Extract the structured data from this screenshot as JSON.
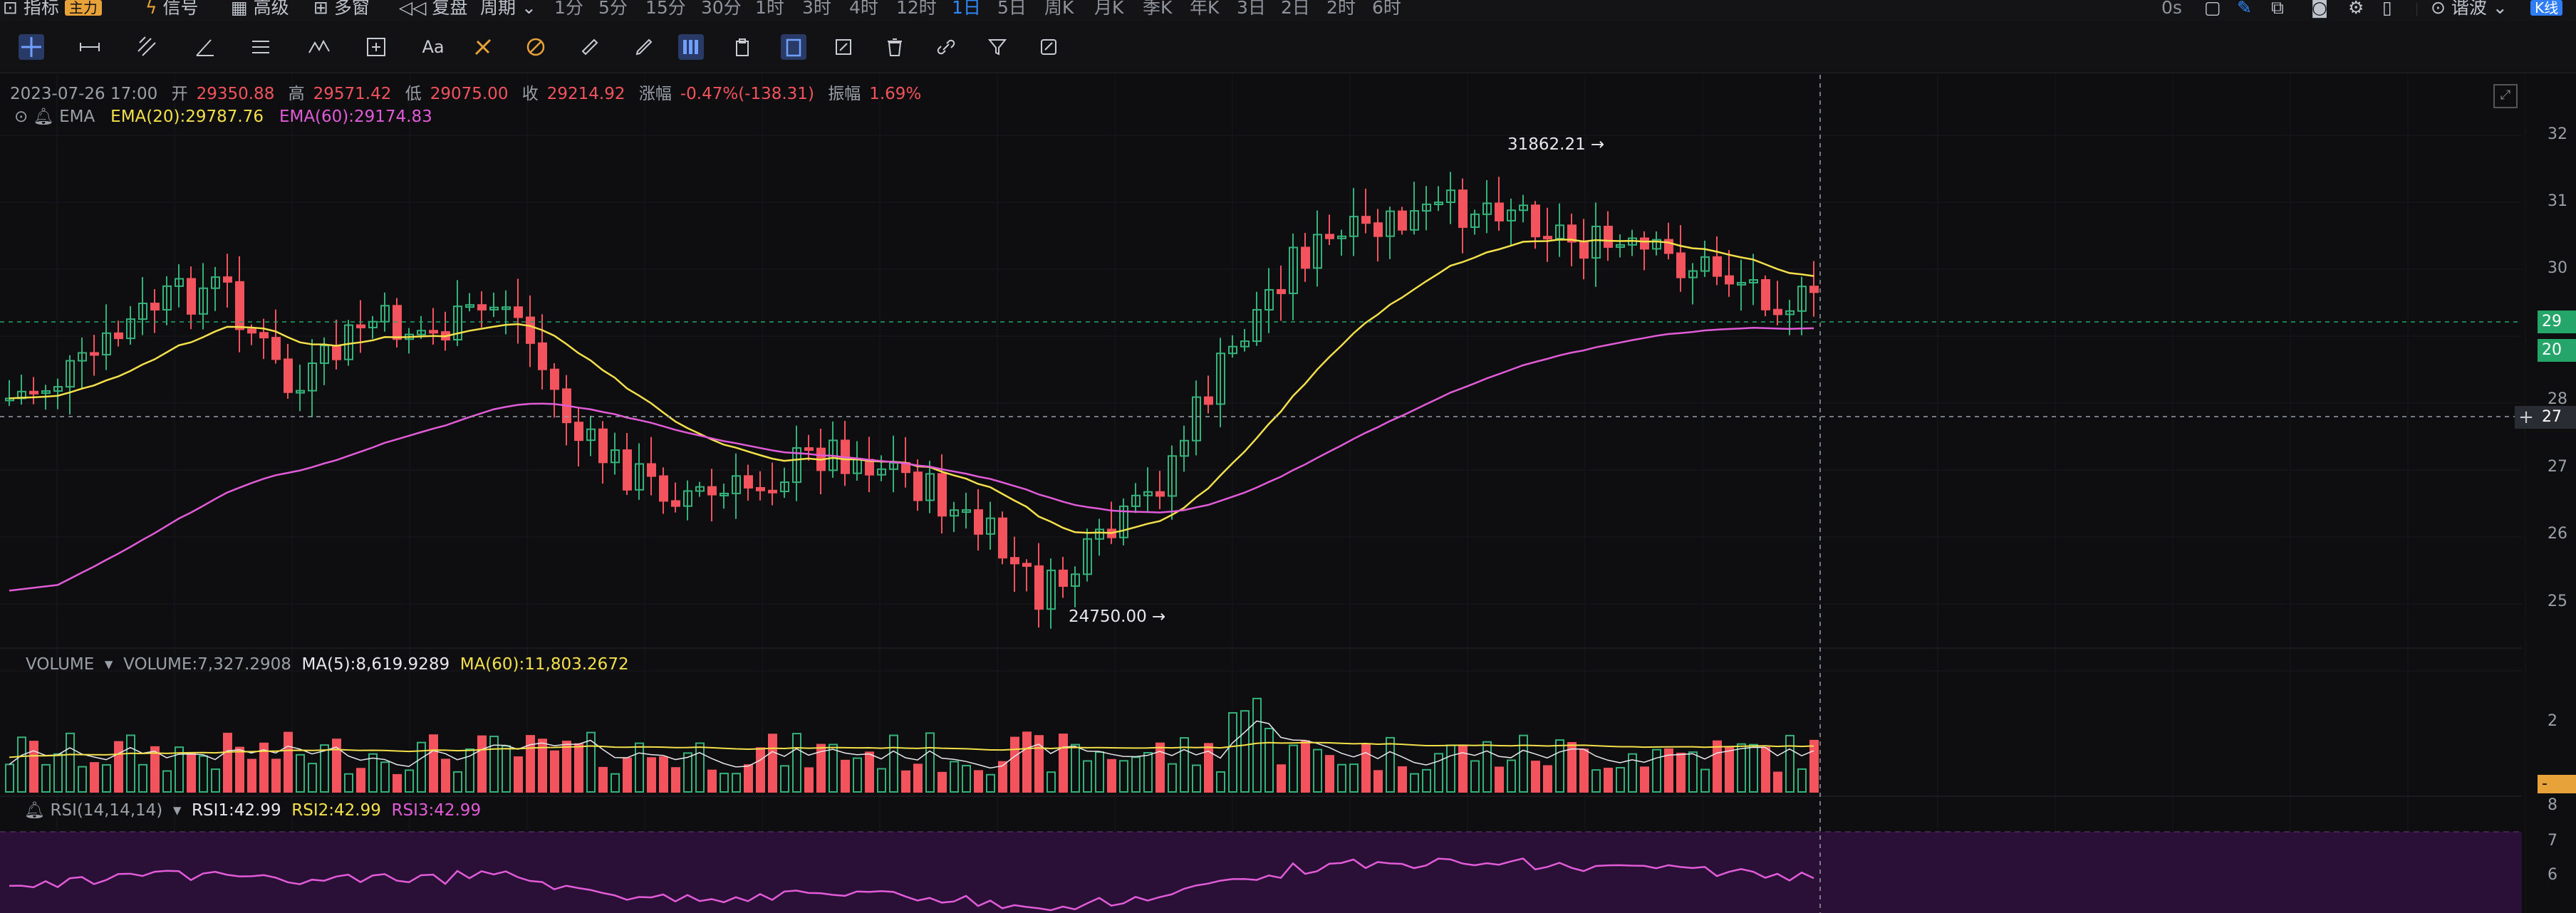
{
  "toolbar_top": {
    "indicator_label": "指标",
    "main_tag": "主力",
    "signal_label": "信号",
    "advanced_label": "高级",
    "multi_label": "多窗",
    "replay_label": "复盘",
    "period_label": "周期",
    "intervals": [
      "1分",
      "5分",
      "15分",
      "30分",
      "1时",
      "3时",
      "4时",
      "12时",
      "1日",
      "5日",
      "周K",
      "月K",
      "季K",
      "年K",
      "3日",
      "2日",
      "2时",
      "6时"
    ],
    "active_interval": "1日",
    "right_time": "0s",
    "theme_label": "谐波",
    "kline_tag": "K线"
  },
  "ohlc": {
    "datetime": "2023-07-26 17:00",
    "open_label": "开",
    "open": "29350.88",
    "high_label": "高",
    "high": "29571.42",
    "low_label": "低",
    "low": "29075.00",
    "close_label": "收",
    "close": "29214.92",
    "change_label": "涨幅",
    "change": "-0.47%(-138.31)",
    "amplitude_label": "振幅",
    "amplitude": "1.69%"
  },
  "ema": {
    "name": "EMA",
    "ema20": "EMA(20):29787.76",
    "ema60": "EMA(60):29174.83"
  },
  "annotations": {
    "high_marker": "31862.21 →",
    "low_marker": "24750.00 →"
  },
  "volume": {
    "name": "VOLUME",
    "value": "VOLUME:7,327.2908",
    "ma5": "MA(5):8,619.9289",
    "ma60": "MA(60):11,803.2672"
  },
  "rsi": {
    "name": "RSI(14,14,14)",
    "rsi1": "RSI1:42.99",
    "rsi2": "RSI2:42.99",
    "rsi3": "RSI3:42.99"
  },
  "price_axis": {
    "ticks": [
      "32",
      "31",
      "30",
      "29",
      "28",
      "27",
      "26",
      "25"
    ],
    "vol_tick": "2",
    "rsi_ticks": [
      "8",
      "7",
      "6"
    ],
    "current_box": "29",
    "ema_box": "20",
    "cursor_box": "27",
    "vol_box": "-"
  },
  "colors": {
    "up": "#34b27a",
    "down": "#f2535c",
    "ema20": "#f3e04a",
    "ema60": "#e25bd8",
    "active": "#2f8bff"
  }
}
